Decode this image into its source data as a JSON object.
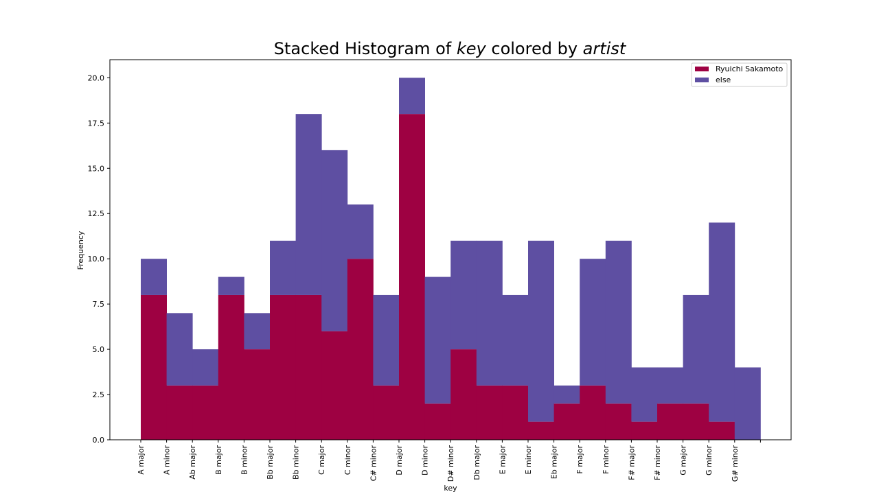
{
  "chart_data": {
    "type": "bar",
    "stacked": true,
    "title_parts": [
      "Stacked Histogram of ",
      "key",
      " colored by ",
      "artist"
    ],
    "xlabel": "key",
    "ylabel": "Frequency",
    "ylim": [
      0,
      21
    ],
    "yticks": [
      "0.0",
      "2.5",
      "5.0",
      "7.5",
      "10.0",
      "12.5",
      "15.0",
      "17.5",
      "20.0"
    ],
    "categories": [
      "A major",
      "A minor",
      "Ab major",
      "B major",
      "B minor",
      "Bb major",
      "Bb minor",
      "C major",
      "C minor",
      "C# minor",
      "D major",
      "D minor",
      "D# minor",
      "Db major",
      "E major",
      "E minor",
      "Eb major",
      "F major",
      "F minor",
      "F# major",
      "F# minor",
      "G major",
      "G minor",
      "G# minor"
    ],
    "series": [
      {
        "name": "Ryuichi Sakamoto",
        "color": "#9e0142",
        "values": [
          8,
          3,
          3,
          8,
          5,
          8,
          8,
          6,
          10,
          3,
          18,
          2,
          5,
          3,
          3,
          1,
          2,
          3,
          2,
          1,
          2,
          2,
          1,
          0
        ]
      },
      {
        "name": "else",
        "color": "#5e4fa2",
        "values": [
          2,
          4,
          2,
          1,
          2,
          3,
          10,
          10,
          3,
          5,
          2,
          7,
          6,
          8,
          5,
          10,
          1,
          7,
          9,
          3,
          2,
          6,
          11,
          4
        ]
      }
    ],
    "grid": false,
    "legend_position": "top-right"
  }
}
